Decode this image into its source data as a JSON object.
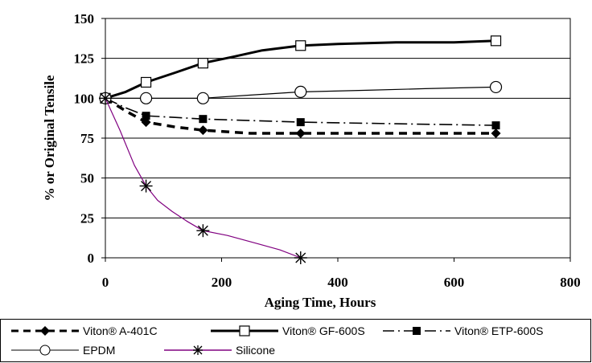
{
  "chart_data": {
    "type": "line",
    "title": "",
    "xlabel": "Aging Time, Hours",
    "ylabel": "% or Original Tensile",
    "xlim": [
      0,
      800
    ],
    "ylim": [
      0,
      150
    ],
    "x_ticks": [
      "0",
      "200",
      "400",
      "600",
      "800"
    ],
    "y_ticks": [
      "0",
      "25",
      "50",
      "75",
      "100",
      "125",
      "150"
    ],
    "grid": "horizontal",
    "legend_position": "bottom",
    "series": [
      {
        "name": "Viton® A-401C",
        "line": "dashed-thick",
        "marker": "filled-diamond",
        "color": "#000000",
        "markers": [
          [
            0,
            100
          ],
          [
            70,
            85
          ],
          [
            168,
            80
          ],
          [
            336,
            78
          ],
          [
            672,
            78
          ]
        ],
        "curve": [
          [
            0,
            100
          ],
          [
            35,
            92
          ],
          [
            70,
            85
          ],
          [
            120,
            82
          ],
          [
            168,
            80
          ],
          [
            250,
            78
          ],
          [
            336,
            78
          ],
          [
            500,
            78
          ],
          [
            672,
            78
          ]
        ]
      },
      {
        "name": "Viton® GF-600S",
        "line": "solid-thick",
        "marker": "open-square",
        "color": "#000000",
        "markers": [
          [
            0,
            100
          ],
          [
            70,
            110
          ],
          [
            168,
            122
          ],
          [
            336,
            133
          ],
          [
            672,
            136
          ]
        ],
        "curve": [
          [
            0,
            100
          ],
          [
            35,
            104
          ],
          [
            70,
            110
          ],
          [
            120,
            116
          ],
          [
            168,
            122
          ],
          [
            220,
            126
          ],
          [
            270,
            130
          ],
          [
            336,
            133
          ],
          [
            400,
            134
          ],
          [
            500,
            135
          ],
          [
            600,
            135
          ],
          [
            672,
            136
          ]
        ]
      },
      {
        "name": "Viton® ETP-600S",
        "line": "dash-dot",
        "marker": "filled-square",
        "color": "#000000",
        "markers": [
          [
            0,
            100
          ],
          [
            70,
            89
          ],
          [
            168,
            87
          ],
          [
            336,
            85
          ],
          [
            672,
            83
          ]
        ],
        "curve": [
          [
            0,
            100
          ],
          [
            35,
            94
          ],
          [
            70,
            89
          ],
          [
            120,
            88
          ],
          [
            168,
            87
          ],
          [
            250,
            86
          ],
          [
            336,
            85
          ],
          [
            500,
            84
          ],
          [
            672,
            83
          ]
        ]
      },
      {
        "name": "EPDM",
        "line": "solid-thin",
        "marker": "open-circle",
        "color": "#000000",
        "markers": [
          [
            0,
            100
          ],
          [
            70,
            100
          ],
          [
            168,
            100
          ],
          [
            336,
            104
          ],
          [
            672,
            107
          ]
        ],
        "curve": [
          [
            0,
            100
          ],
          [
            70,
            100
          ],
          [
            168,
            100
          ],
          [
            250,
            102
          ],
          [
            336,
            104
          ],
          [
            450,
            105
          ],
          [
            550,
            106
          ],
          [
            672,
            107
          ]
        ]
      },
      {
        "name": "Silicone",
        "line": "solid-thin",
        "marker": "asterisk",
        "color": "#800080",
        "markers": [
          [
            0,
            100
          ],
          [
            70,
            45
          ],
          [
            168,
            17
          ],
          [
            336,
            0
          ]
        ],
        "curve": [
          [
            0,
            100
          ],
          [
            25,
            80
          ],
          [
            50,
            58
          ],
          [
            70,
            45
          ],
          [
            90,
            36
          ],
          [
            115,
            29
          ],
          [
            140,
            23
          ],
          [
            168,
            17
          ],
          [
            210,
            14
          ],
          [
            260,
            9
          ],
          [
            300,
            5
          ],
          [
            336,
            0
          ]
        ]
      }
    ]
  }
}
